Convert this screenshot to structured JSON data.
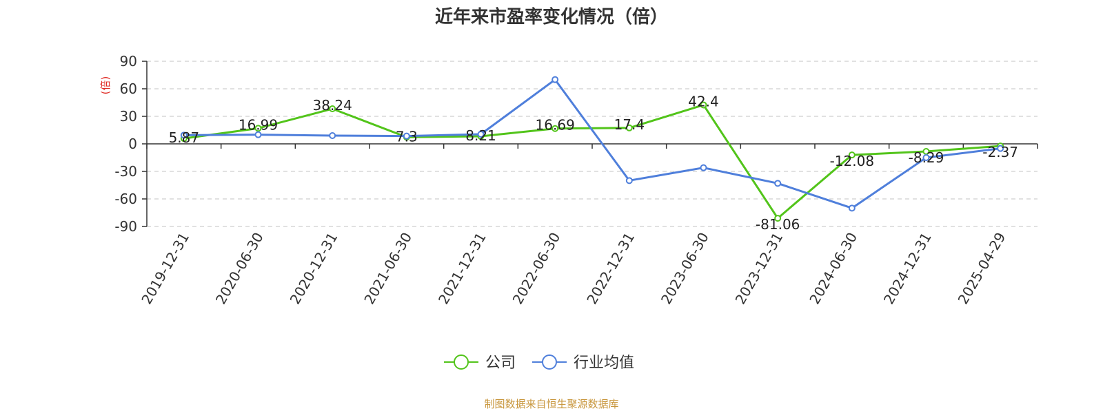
{
  "chart_data": {
    "type": "line",
    "title": "近年来市盈率变化情况（倍）",
    "ylabel": "(倍)",
    "xlabel": "",
    "ylim": [
      -90,
      90
    ],
    "yticks": [
      90,
      60,
      30,
      0,
      -30,
      -60,
      -90
    ],
    "grid": true,
    "legend_position": "bottom",
    "categories": [
      "2019-12-31",
      "2020-06-30",
      "2020-12-31",
      "2021-06-30",
      "2021-12-31",
      "2022-06-30",
      "2022-12-31",
      "2023-06-30",
      "2023-12-31",
      "2024-06-30",
      "2024-12-31",
      "2025-04-29"
    ],
    "series": [
      {
        "name": "公司",
        "color": "#52c41a",
        "values": [
          5.87,
          16.99,
          38.24,
          7.3,
          8.21,
          16.69,
          17.4,
          42.4,
          -81.06,
          -12.08,
          -8.29,
          -2.37
        ],
        "labels": [
          "5.87",
          "16.99",
          "38.24",
          "7.3",
          "8.21",
          "16.69",
          "17.4",
          "42.4",
          "-81.06",
          "-12.08",
          "-8.29",
          "-2.37"
        ]
      },
      {
        "name": "行业均值",
        "color": "#4f7fdb",
        "values": [
          9.5,
          10.0,
          9.0,
          8.5,
          10.5,
          70.0,
          -40.0,
          -26.0,
          -43.0,
          -70.0,
          -15.0,
          -5.0
        ]
      }
    ]
  },
  "source": "制图数据来自恒生聚源数据库"
}
